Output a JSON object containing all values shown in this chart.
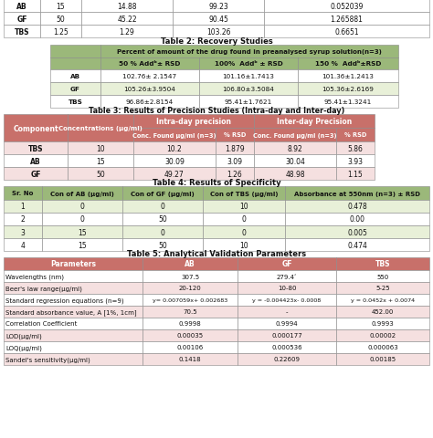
{
  "title_table2": "Table 2: Recovery Studies",
  "title_table3": "Table 3: Results of Precision Studies (Intra-day and Inter-day)",
  "title_table4": "Table 4: Results of Specificity",
  "title_table5": "Table 5: Analytical Validation Parameters",
  "table1_rows": [
    [
      "AB",
      "15",
      "14.88",
      "99.23",
      "0.052039"
    ],
    [
      "GF",
      "50",
      "45.22",
      "90.45",
      "1.265881"
    ],
    [
      "TBS",
      "1.25",
      "1.29",
      "103.26",
      "0.6651"
    ]
  ],
  "table2_header1": "Percent of amount of the drug found in preanalysed syrup solution(n=3)",
  "table2_header2": [
    "",
    "50 % Addᵇ± RSD",
    "100%  Addᵇ ± RSD",
    "150 %  Addᵇ±RSD"
  ],
  "table2_rows": [
    [
      "AB",
      "102.76± 2.1547",
      "101.16±1.7413",
      "101.36±1.2413"
    ],
    [
      "GF",
      "105.26±3.9504",
      "106.80±3.5084",
      "105.36±2.6169"
    ],
    [
      "TBS",
      "96.86±2.8154",
      "95.41±1.7621",
      "95.41±1.3241"
    ]
  ],
  "table3_subheader1": [
    "Component",
    "Concentrations (µg/ml)",
    "Intra-day precision",
    "",
    "Inter-day Precision",
    ""
  ],
  "table3_subheader2": [
    "",
    "",
    "Conc. Found µg/ml (n=3)",
    "% RSD",
    "Conc. Found µg/ml (n=3)",
    "% RSD"
  ],
  "table3_rows": [
    [
      "TBS",
      "10",
      "10.2",
      "1.879",
      "8.92",
      "5.86"
    ],
    [
      "AB",
      "15",
      "30.09",
      "3.09",
      "30.04",
      "3.93"
    ],
    [
      "GF",
      "50",
      "49.27",
      "1.26",
      "48.98",
      "1.15"
    ]
  ],
  "table4_header": [
    "Sr. No",
    "Con of AB (µg/ml)",
    "Con of GF (µg/ml)",
    "Con of TBS (µg/ml)",
    "Absorbance at 550nm (n=3) ± RSD"
  ],
  "table4_rows": [
    [
      "1",
      "0",
      "0",
      "10",
      "0.478"
    ],
    [
      "2",
      "0",
      "50",
      "0",
      "0.00"
    ],
    [
      "3",
      "15",
      "0",
      "0",
      "0.005"
    ],
    [
      "4",
      "15",
      "50",
      "10",
      "0.474"
    ]
  ],
  "table5_header": [
    "Parameters",
    "AB",
    "GF",
    "TBS"
  ],
  "table5_rows": [
    [
      "Wavelengths (nm)",
      "307.5",
      "279.4ʼ",
      "550"
    ],
    [
      "Beer's law range(µg/ml)",
      "20-120",
      "10-80",
      "5-25"
    ],
    [
      "Standard regression equations (n=9)",
      "y= 0.007059x+ 0.002683",
      "y = -0.004423x- 0.0008",
      "y = 0.0452x + 0.0074"
    ],
    [
      "Standard absorbance value, A [1%, 1cm]",
      "70.5",
      "-",
      "452.00"
    ],
    [
      "Correlation Coefficient",
      "0.9998",
      "0.9994",
      "0.9993"
    ],
    [
      "LOD(µg/ml)",
      "0.00035",
      "0.000177",
      "0.00002"
    ],
    [
      "LOQ(µg/ml)",
      "0.00106",
      "0.000536",
      "0.000063"
    ],
    [
      "Sandel's sensitivity(µg/ml)",
      "0.1418",
      "0.22609",
      "0.00185"
    ]
  ],
  "color_header_red": "#C8706A",
  "color_header_green": "#9BB87A",
  "color_row_light_green": "#E8F0D8",
  "color_row_white": "#FFFFFF",
  "color_row_light_pink": "#F5E0E0",
  "color_border": "#888888",
  "bg_color": "#FFFFFF"
}
